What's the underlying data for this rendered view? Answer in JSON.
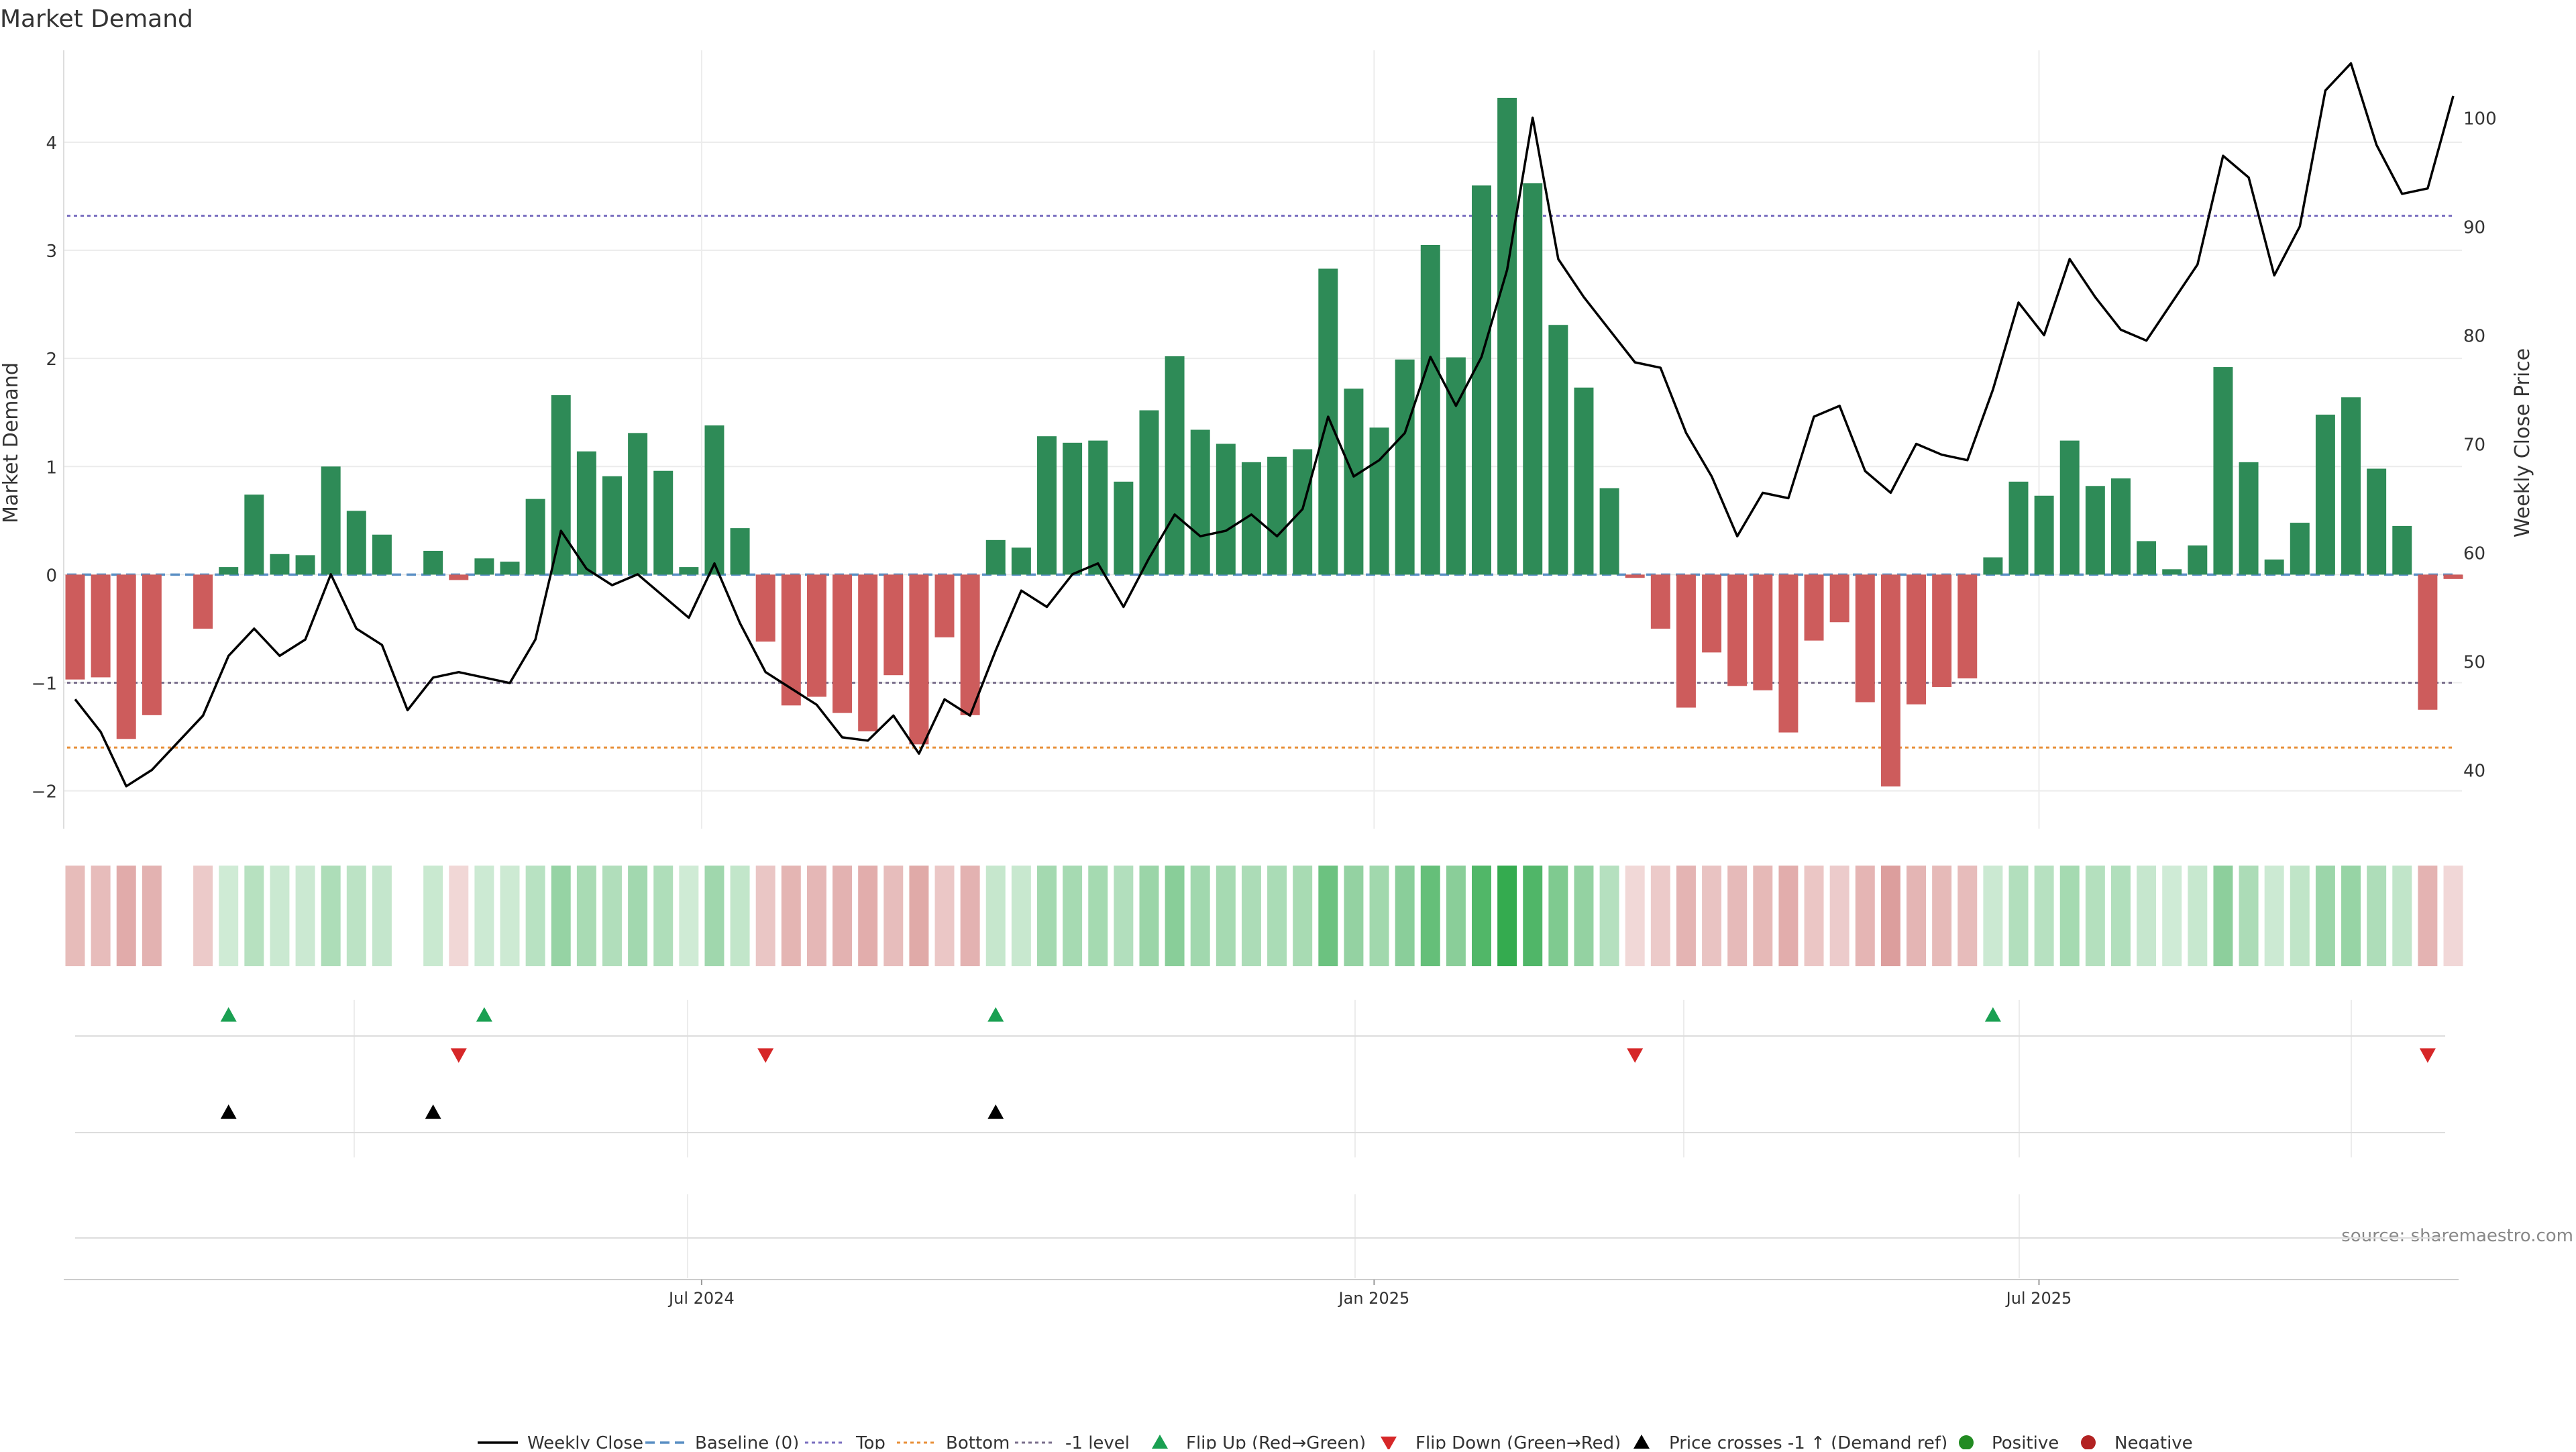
{
  "chart_data": {
    "type": "bar",
    "title": "Market Demand",
    "ylabel_left": "Market Demand",
    "ylabel_right": "Weekly Close Price",
    "source": "source: sharemaestro.com",
    "x_ticks": [
      "Jul 2024",
      "Jan 2025",
      "Jul 2025"
    ],
    "x_tick_index": [
      24.5,
      50.8,
      76.8
    ],
    "y_left_ticks": [
      "−2",
      "−1",
      "0",
      "1",
      "2",
      "3",
      "4"
    ],
    "y_left_values": [
      -2,
      -1,
      0,
      1,
      2,
      3,
      4
    ],
    "ylim_left": [
      -2.35,
      4.85
    ],
    "y_right_ticks": [
      "40",
      "50",
      "60",
      "70",
      "80",
      "90",
      "100"
    ],
    "y_right_values": [
      40,
      50,
      60,
      70,
      80,
      90,
      100
    ],
    "ylim_right": [
      34.6,
      106.2
    ],
    "reference_levels": [
      {
        "name": "Baseline (0)",
        "value": 0,
        "color": "#5a8fc4"
      },
      {
        "name": "Top",
        "value": 3.32,
        "color": "#7a6fc0"
      },
      {
        "name": "Bottom",
        "value": -1.6,
        "color": "#e8903a"
      },
      {
        "name": "-1 level",
        "value": -1,
        "color": "#7a6f8c"
      }
    ],
    "demand": [
      -0.97,
      -0.95,
      -1.52,
      -1.3,
      0,
      -0.5,
      0.07,
      0.74,
      0.19,
      0.18,
      1.0,
      0.59,
      0.37,
      0,
      0.22,
      -0.05,
      0.15,
      0.12,
      0.7,
      1.66,
      1.14,
      0.91,
      1.31,
      0.96,
      0.07,
      1.38,
      0.43,
      -0.62,
      -1.21,
      -1.13,
      -1.28,
      -1.45,
      -0.93,
      -1.57,
      -0.58,
      -1.3,
      0.32,
      0.25,
      1.28,
      1.22,
      1.24,
      0.86,
      1.52,
      2.02,
      1.34,
      1.21,
      1.04,
      1.09,
      1.16,
      2.83,
      1.72,
      1.36,
      1.99,
      3.05,
      2.01,
      3.6,
      4.41,
      3.62,
      2.31,
      1.73,
      0.8,
      -0.03,
      -0.5,
      -1.23,
      -0.72,
      -1.03,
      -1.07,
      -1.46,
      -0.61,
      -0.44,
      -1.18,
      -1.96,
      -1.2,
      -1.04,
      -0.96,
      0.16,
      0.86,
      0.73,
      1.24,
      0.82,
      0.89,
      0.31,
      0.05,
      0.27,
      1.92,
      1.04,
      0.14,
      0.48,
      1.48,
      1.64,
      0.98,
      0.45,
      -1.25,
      -0.04
    ],
    "weekly_close": [
      46.5,
      43.5,
      38.5,
      40.0,
      42.5,
      45.0,
      50.5,
      53.0,
      50.5,
      52.0,
      58.0,
      53.0,
      51.5,
      45.5,
      48.5,
      49.0,
      48.5,
      48.0,
      52.0,
      62.0,
      58.5,
      57.0,
      58.0,
      56.0,
      54.0,
      59.0,
      53.5,
      49.0,
      47.5,
      46.0,
      43.0,
      42.7,
      45.0,
      41.5,
      46.5,
      45.0,
      51.0,
      56.5,
      55.0,
      58.0,
      59.0,
      55.0,
      59.5,
      63.5,
      61.5,
      62.0,
      63.5,
      61.5,
      64.0,
      72.5,
      67.0,
      68.5,
      71.0,
      78.0,
      73.5,
      78.0,
      86.0,
      100.0,
      87.0,
      83.5,
      80.5,
      77.5,
      77.0,
      71.0,
      67.0,
      61.5,
      65.5,
      65.0,
      72.5,
      73.5,
      67.5,
      65.5,
      70.0,
      69.0,
      68.5,
      75.0,
      83.0,
      80.0,
      87.0,
      83.5,
      80.5,
      79.5,
      83.0,
      86.5,
      96.5,
      94.5,
      85.5,
      90.0,
      102.5,
      105.0,
      97.5,
      93.0,
      93.5,
      102.0
    ],
    "flip_up_index": [
      6,
      16,
      36,
      75
    ],
    "flip_down_index": [
      15,
      27,
      61,
      92
    ],
    "price_cross_index": [
      6,
      14,
      36
    ],
    "legend": [
      "Weekly Close",
      "Baseline (0)",
      "Top",
      "Bottom",
      "-1 level",
      "Flip Up (Red→Green)",
      "Flip Down (Green→Red)",
      "Price crosses -1 ↑ (Demand ref)",
      "Positive",
      "Negative"
    ],
    "colors": {
      "positive": "#2e8b57",
      "negative": "#cd5c5c",
      "flip_up": "#1aa052",
      "flip_down": "#d62728",
      "price_line": "#000000",
      "legend_positive": "#228b22",
      "legend_negative": "#b22222",
      "grid": "#ececec",
      "text": "#333333"
    }
  }
}
